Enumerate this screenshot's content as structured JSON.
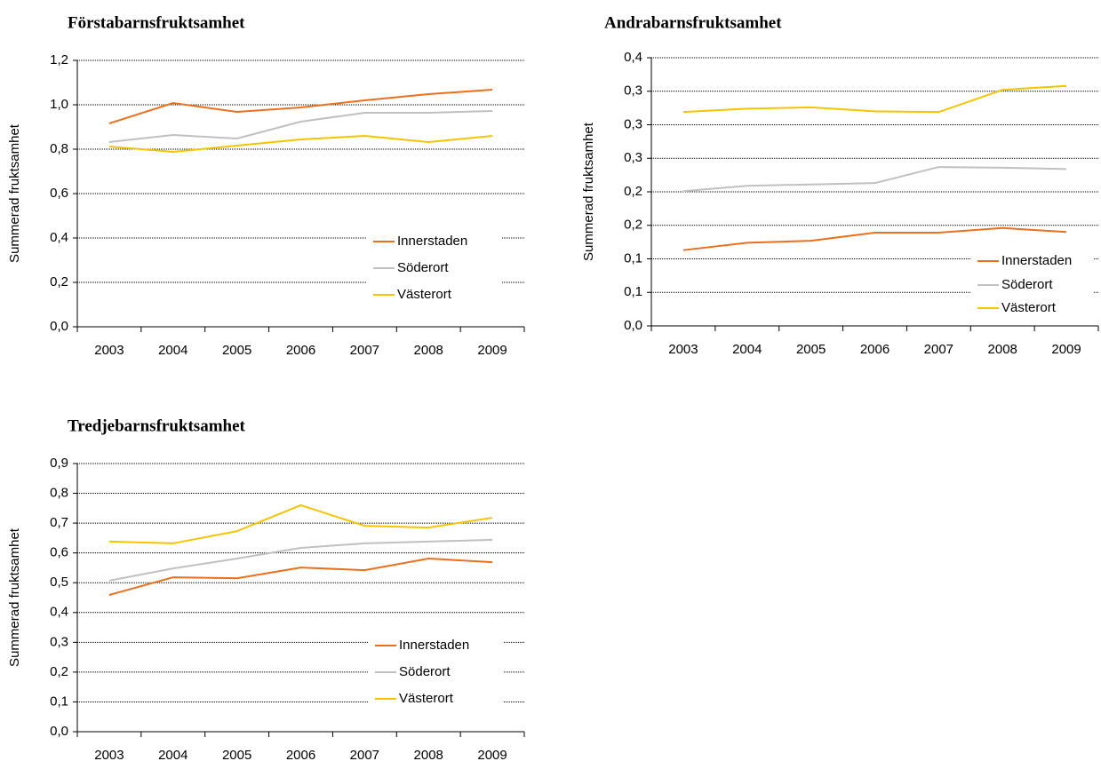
{
  "chart_data": [
    {
      "type": "line",
      "title": "Förstabarnsfruktsamhet",
      "ylabel": "Summerad fruktsamhet",
      "categories": [
        "2003",
        "2004",
        "2005",
        "2006",
        "2007",
        "2008",
        "2009"
      ],
      "series": [
        {
          "name": "Innerstaden",
          "color": "#e8701e",
          "values": [
            0.916,
            1.008,
            0.968,
            0.988,
            1.02,
            1.048,
            1.068
          ]
        },
        {
          "name": "Söderort",
          "color": "#c0c0c0",
          "values": [
            0.832,
            0.864,
            0.848,
            0.924,
            0.964,
            0.964,
            0.972
          ]
        },
        {
          "name": "Västerort",
          "color": "#f5c400",
          "values": [
            0.812,
            0.788,
            0.816,
            0.844,
            0.86,
            0.832,
            0.86
          ]
        }
      ],
      "ylim": [
        0,
        1.2
      ],
      "yticks": [
        {
          "value": 0,
          "label": "0,0"
        },
        {
          "value": 0.2,
          "label": "0,2"
        },
        {
          "value": 0.4,
          "label": "0,4"
        },
        {
          "value": 0.6,
          "label": "0,6"
        },
        {
          "value": 0.8,
          "label": "0,8"
        },
        {
          "value": 1.0,
          "label": "1,0"
        },
        {
          "value": 1.2,
          "label": "1,2"
        }
      ],
      "grid": true,
      "legend": "lower right"
    },
    {
      "type": "line",
      "title": "Andrabarnsfruktsamhet",
      "ylabel": "Summerad fruktsamhet",
      "categories": [
        "2003",
        "2004",
        "2005",
        "2006",
        "2007",
        "2008",
        "2009"
      ],
      "series": [
        {
          "name": "Innerstaden",
          "color": "#e8701e",
          "values": [
            0.113,
            0.124,
            0.127,
            0.139,
            0.139,
            0.146,
            0.14
          ]
        },
        {
          "name": "Söderort",
          "color": "#c0c0c0",
          "values": [
            0.201,
            0.209,
            0.211,
            0.213,
            0.237,
            0.236,
            0.234
          ]
        },
        {
          "name": "Västerort",
          "color": "#f5c400",
          "values": [
            0.319,
            0.324,
            0.326,
            0.32,
            0.319,
            0.352,
            0.358
          ]
        }
      ],
      "ylim": [
        0,
        0.4
      ],
      "yticks": [
        {
          "value": 0,
          "label": "0,0"
        },
        {
          "value": 0.05,
          "label": "0,1"
        },
        {
          "value": 0.1,
          "label": "0,1"
        },
        {
          "value": 0.15,
          "label": "0,2"
        },
        {
          "value": 0.2,
          "label": "0,2"
        },
        {
          "value": 0.25,
          "label": "0,3"
        },
        {
          "value": 0.3,
          "label": "0,3"
        },
        {
          "value": 0.35,
          "label": "0,3"
        },
        {
          "value": 0.4,
          "label": "0,4"
        }
      ],
      "grid": true,
      "legend": "lower right"
    },
    {
      "type": "line",
      "title": "Tredjebarnsfruktsamhet",
      "ylabel": "Summerad fruktsamhet",
      "categories": [
        "2003",
        "2004",
        "2005",
        "2006",
        "2007",
        "2008",
        "2009"
      ],
      "series": [
        {
          "name": "Innerstaden",
          "color": "#e8701e",
          "values": [
            0.459,
            0.518,
            0.515,
            0.551,
            0.542,
            0.581,
            0.569
          ]
        },
        {
          "name": "Söderort",
          "color": "#c0c0c0",
          "values": [
            0.507,
            0.548,
            0.581,
            0.617,
            0.632,
            0.638,
            0.644
          ]
        },
        {
          "name": "Västerort",
          "color": "#f5c400",
          "values": [
            0.638,
            0.632,
            0.673,
            0.76,
            0.691,
            0.685,
            0.718
          ]
        }
      ],
      "ylim": [
        0,
        0.9
      ],
      "yticks": [
        {
          "value": 0,
          "label": "0,0"
        },
        {
          "value": 0.1,
          "label": "0,1"
        },
        {
          "value": 0.2,
          "label": "0,2"
        },
        {
          "value": 0.3,
          "label": "0,3"
        },
        {
          "value": 0.4,
          "label": "0,4"
        },
        {
          "value": 0.5,
          "label": "0,5"
        },
        {
          "value": 0.6,
          "label": "0,6"
        },
        {
          "value": 0.7,
          "label": "0,7"
        },
        {
          "value": 0.8,
          "label": "0,8"
        },
        {
          "value": 0.9,
          "label": "0,9"
        }
      ],
      "grid": true,
      "legend": "lower right"
    }
  ]
}
